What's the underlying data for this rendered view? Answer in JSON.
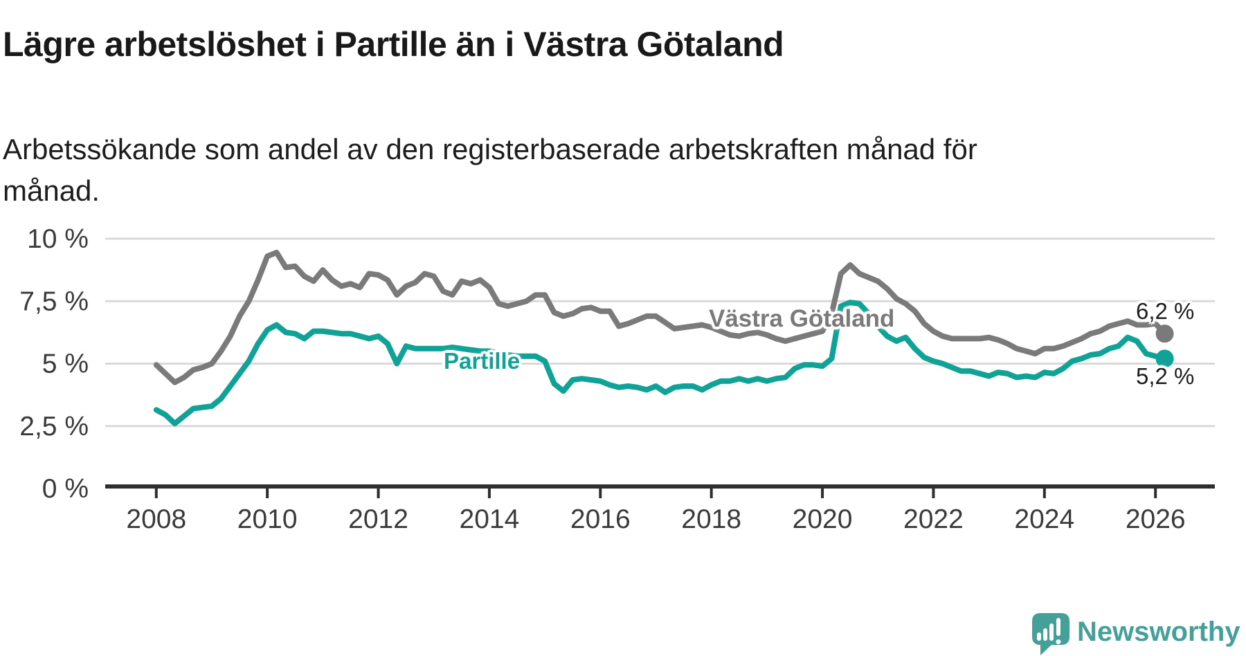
{
  "header": {
    "title": "Lägre arbetslöshet i Partille än i Västra Götaland",
    "subtitle": "Arbetssökande som andel av den registerbaserade arbetskraften månad för månad.",
    "subtitle_lines": [
      "Arbetssökande som andel av den registerbaserade arbetskraften månad för",
      "månad."
    ]
  },
  "chart_data": {
    "type": "line",
    "title": "Lägre arbetslöshet i Partille än i Västra Götaland",
    "xlabel": "",
    "ylabel": "",
    "grid": true,
    "legend_position": "inline-labels",
    "x_range": [
      2007.08,
      2027.07
    ],
    "y_range": [
      0,
      10
    ],
    "x_ticks": [
      2008,
      2010,
      2012,
      2014,
      2016,
      2018,
      2020,
      2022,
      2024,
      2026
    ],
    "y_ticks": [
      {
        "value": 0,
        "label": "0 %"
      },
      {
        "value": 2.5,
        "label": "2,5 %"
      },
      {
        "value": 5,
        "label": "5 %"
      },
      {
        "value": 7.5,
        "label": "7,5 %"
      },
      {
        "value": 10,
        "label": "10 %"
      }
    ],
    "x_start": 2008.0,
    "x_step_years": 0.1666667,
    "series": [
      {
        "name": "Västra Götaland",
        "color": "#7a7a7a",
        "end_label": "6,2 %",
        "end_value": 6.2,
        "values": [
          4.95,
          4.6,
          4.25,
          4.45,
          4.75,
          4.85,
          5.0,
          5.5,
          6.1,
          6.9,
          7.5,
          8.35,
          9.3,
          9.45,
          8.85,
          8.9,
          8.5,
          8.3,
          8.75,
          8.35,
          8.1,
          8.2,
          8.05,
          8.6,
          8.55,
          8.35,
          7.75,
          8.1,
          8.25,
          8.6,
          8.5,
          7.9,
          7.75,
          8.3,
          8.2,
          8.35,
          8.05,
          7.4,
          7.3,
          7.4,
          7.5,
          7.75,
          7.75,
          7.05,
          6.9,
          7.0,
          7.2,
          7.25,
          7.1,
          7.1,
          6.5,
          6.6,
          6.75,
          6.9,
          6.9,
          6.65,
          6.4,
          6.45,
          6.5,
          6.55,
          6.45,
          6.3,
          6.15,
          6.1,
          6.2,
          6.25,
          6.15,
          6.0,
          5.9,
          6.0,
          6.1,
          6.2,
          6.3,
          7.0,
          8.6,
          8.95,
          8.6,
          8.45,
          8.3,
          8.0,
          7.6,
          7.4,
          7.1,
          6.6,
          6.3,
          6.1,
          6.0,
          6.0,
          6.0,
          6.0,
          6.05,
          5.95,
          5.8,
          5.6,
          5.5,
          5.4,
          5.6,
          5.6,
          5.7,
          5.85,
          6.0,
          6.2,
          6.3,
          6.5,
          6.6,
          6.7,
          6.55,
          6.55,
          6.6,
          6.2
        ]
      },
      {
        "name": "Partille",
        "color": "#10a296",
        "end_label": "5,2 %",
        "end_value": 5.2,
        "values": [
          3.15,
          2.95,
          2.6,
          2.9,
          3.2,
          3.25,
          3.3,
          3.6,
          4.1,
          4.6,
          5.1,
          5.8,
          6.35,
          6.55,
          6.25,
          6.2,
          6.0,
          6.3,
          6.3,
          6.25,
          6.2,
          6.2,
          6.1,
          6.0,
          6.1,
          5.8,
          5.0,
          5.7,
          5.6,
          5.6,
          5.6,
          5.6,
          5.65,
          5.6,
          5.55,
          5.5,
          5.5,
          5.4,
          5.35,
          5.3,
          5.3,
          5.3,
          5.1,
          4.2,
          3.9,
          4.35,
          4.4,
          4.35,
          4.3,
          4.15,
          4.05,
          4.1,
          4.05,
          3.95,
          4.1,
          3.85,
          4.05,
          4.1,
          4.1,
          3.95,
          4.15,
          4.3,
          4.3,
          4.4,
          4.3,
          4.4,
          4.3,
          4.4,
          4.45,
          4.8,
          4.95,
          4.95,
          4.9,
          5.2,
          7.3,
          7.45,
          7.4,
          7.0,
          6.5,
          6.1,
          5.9,
          6.05,
          5.6,
          5.25,
          5.1,
          5.0,
          4.85,
          4.7,
          4.7,
          4.6,
          4.5,
          4.65,
          4.6,
          4.45,
          4.5,
          4.45,
          4.65,
          4.6,
          4.8,
          5.1,
          5.2,
          5.35,
          5.4,
          5.6,
          5.7,
          6.05,
          5.9,
          5.4,
          5.3,
          5.2
        ]
      }
    ]
  },
  "colors": {
    "background": "#ffffff",
    "axis": "#2e2e2e",
    "gridline": "#d9d9d9",
    "tick_label": "#3a3a3a",
    "title": "#191919",
    "end_label": "#1d1d1d",
    "partille": "#10a296",
    "vastra_gotaland": "#7a7a7a",
    "logo": "#45a099"
  },
  "footer": {
    "logo_text": "Newsworthy"
  }
}
